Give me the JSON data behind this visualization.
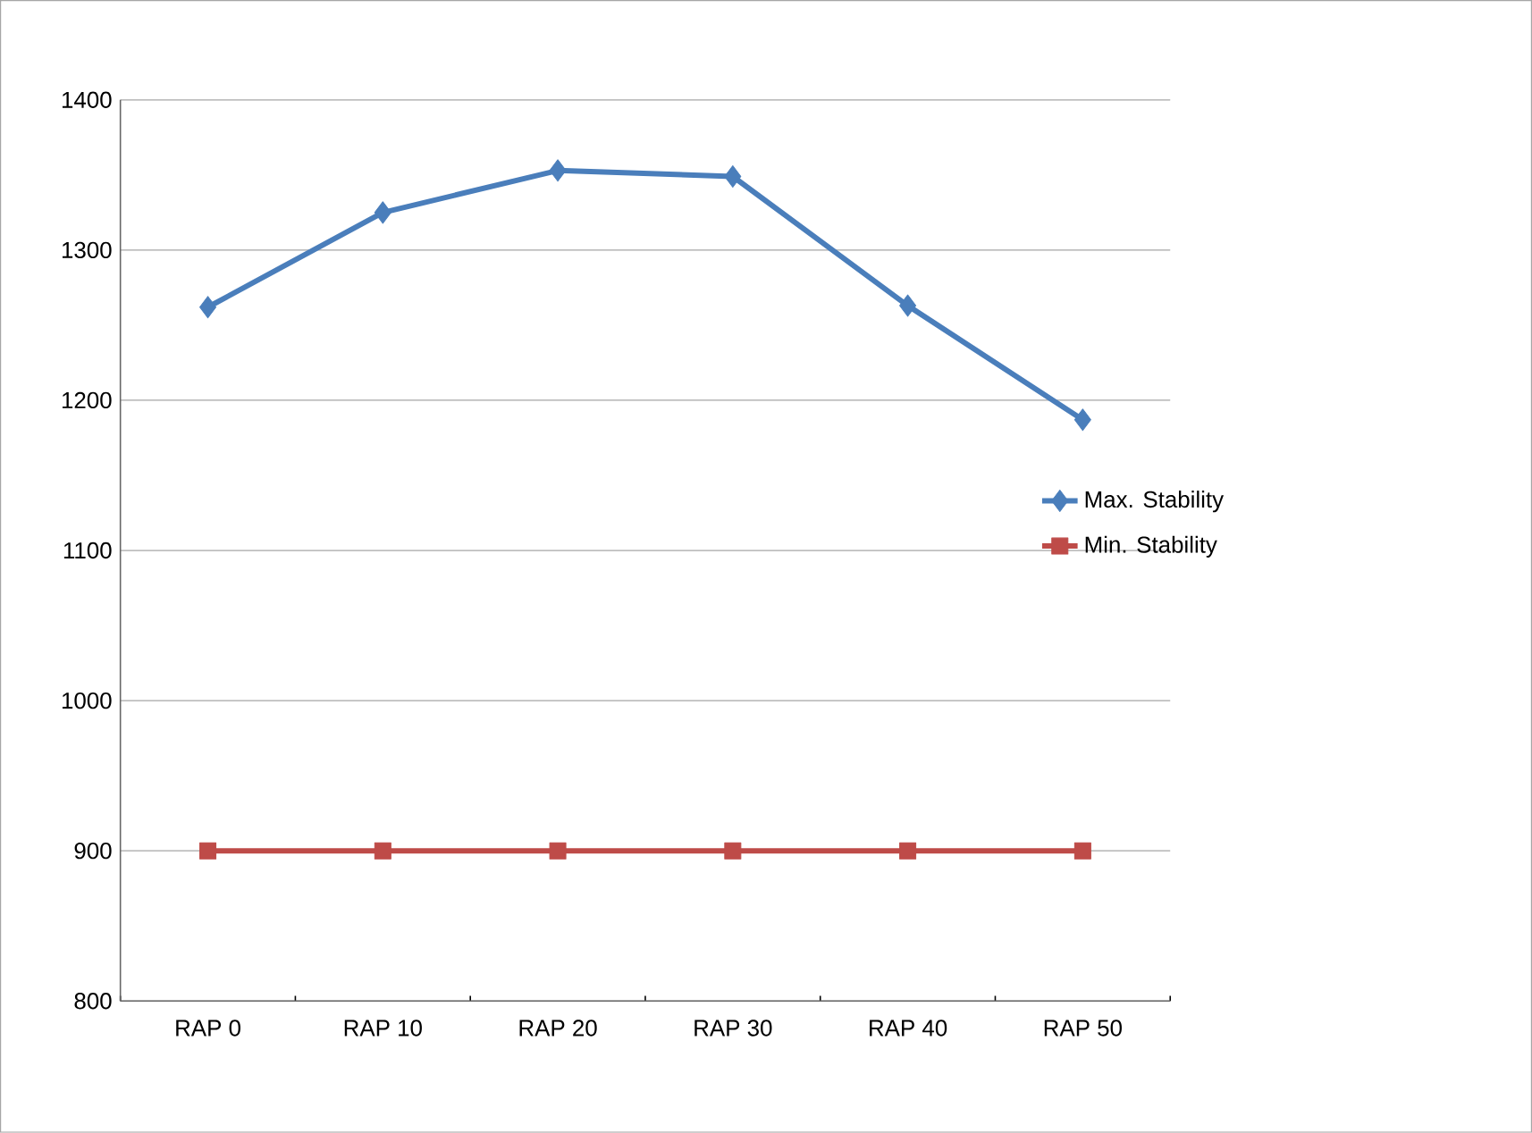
{
  "chart_data": {
    "type": "line",
    "categories": [
      "RAP 0",
      "RAP 10",
      "RAP 20",
      "RAP 30",
      "RAP 40",
      "RAP 50"
    ],
    "series": [
      {
        "name": "Max. Stability",
        "color": "#4a7ebb",
        "marker": "diamond",
        "values": [
          1262,
          1325,
          1353,
          1349,
          1263,
          1187
        ]
      },
      {
        "name": "Min. Stability",
        "color": "#be4b48",
        "marker": "square",
        "values": [
          900,
          900,
          900,
          900,
          900,
          900
        ]
      }
    ],
    "ylim": [
      800,
      1400
    ],
    "yticks": [
      800,
      900,
      1000,
      1100,
      1200,
      1300,
      1400
    ],
    "grid": "y",
    "legend": "right"
  }
}
